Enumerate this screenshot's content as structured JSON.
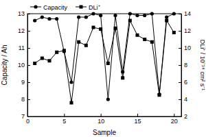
{
  "chart_data": {
    "type": "line",
    "x": [
      1,
      2,
      3,
      4,
      5,
      6,
      7,
      8,
      9,
      10,
      11,
      12,
      13,
      14,
      15,
      16,
      17,
      18,
      19,
      20
    ],
    "xlim": [
      0,
      21
    ],
    "xticks": [
      0,
      5,
      10,
      15,
      20
    ],
    "ylim": [
      7,
      13
    ],
    "yticks": [
      7,
      8,
      9,
      10,
      11,
      12,
      13
    ],
    "y2lim": [
      2,
      14
    ],
    "y2ticks": [
      2,
      4,
      6,
      8,
      10,
      12,
      14
    ],
    "xlabel": "Sample",
    "ylabel": "Capacity / Ah",
    "y2label": "DLi⁺ / 10⁻¹⁴ cm² s⁻¹",
    "legend": "upper left",
    "series": [
      {
        "name": "Capacity",
        "color": "#000000",
        "marker": "circle",
        "values": [
          12.6,
          12.8,
          12.7,
          12.7,
          10.8,
          9.0,
          12.8,
          12.8,
          13.0,
          12.9,
          8.0,
          12.9,
          9.6,
          13.0,
          12.9,
          12.9,
          13.0,
          8.3,
          12.8,
          13.0
        ]
      },
      {
        "name": "DLi⁺",
        "color": "#000000",
        "marker": "square",
        "axis": "y2",
        "values": [
          8.2,
          8.8,
          8.5,
          9.5,
          9.7,
          3.6,
          10.7,
          10.3,
          12.4,
          12.2,
          8.2,
          12.3,
          6.5,
          13.2,
          11.5,
          11.0,
          10.7,
          4.5,
          13.2,
          11.8
        ]
      }
    ]
  }
}
